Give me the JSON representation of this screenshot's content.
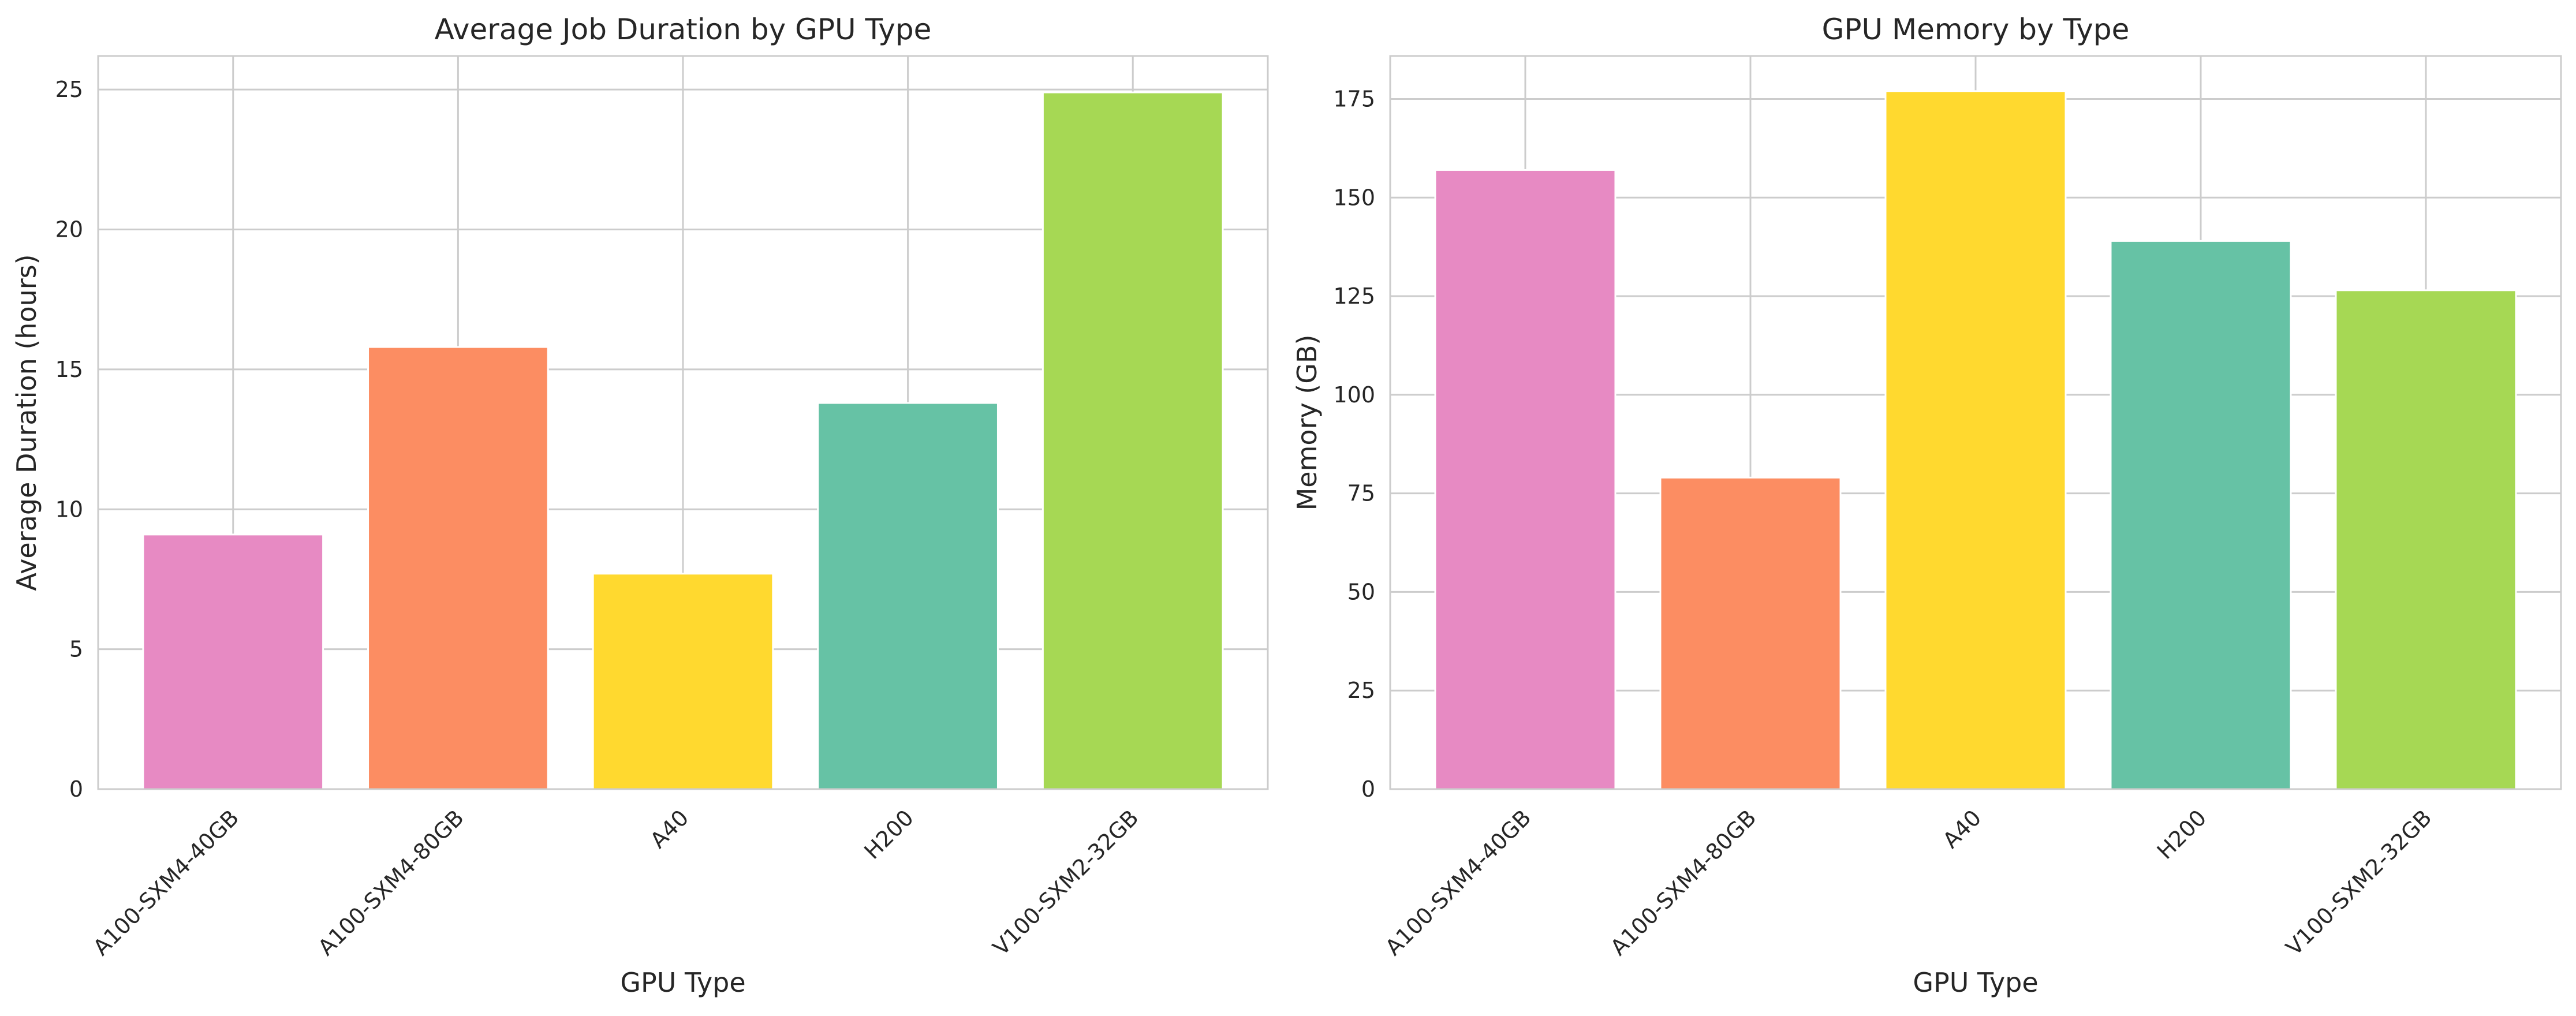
{
  "chart_data": [
    {
      "type": "bar",
      "title": "Average Job Duration by GPU Type",
      "xlabel": "GPU Type",
      "ylabel": "Average Duration (hours)",
      "categories": [
        "A100-SXM4-40GB",
        "A100-SXM4-80GB",
        "A40",
        "H200",
        "V100-SXM2-32GB"
      ],
      "values": [
        9.1,
        15.8,
        7.7,
        13.8,
        24.9
      ],
      "colors": [
        "#e78ac3",
        "#fc8d62",
        "#ffd92f",
        "#66c2a5",
        "#a6d854"
      ],
      "ylim": [
        0,
        26.2
      ],
      "yticks": [
        0,
        5,
        10,
        15,
        20,
        25
      ],
      "grid": true
    },
    {
      "type": "bar",
      "title": "GPU Memory by Type",
      "xlabel": "GPU Type",
      "ylabel": "Memory (GB)",
      "categories": [
        "A100-SXM4-40GB",
        "A100-SXM4-80GB",
        "A40",
        "H200",
        "V100-SXM2-32GB"
      ],
      "values": [
        157,
        79,
        177,
        139,
        126.5
      ],
      "colors": [
        "#e78ac3",
        "#fc8d62",
        "#ffd92f",
        "#66c2a5",
        "#a6d854"
      ],
      "ylim": [
        0,
        185.9
      ],
      "yticks": [
        0,
        25,
        50,
        75,
        100,
        125,
        150,
        175
      ],
      "grid": true
    }
  ]
}
